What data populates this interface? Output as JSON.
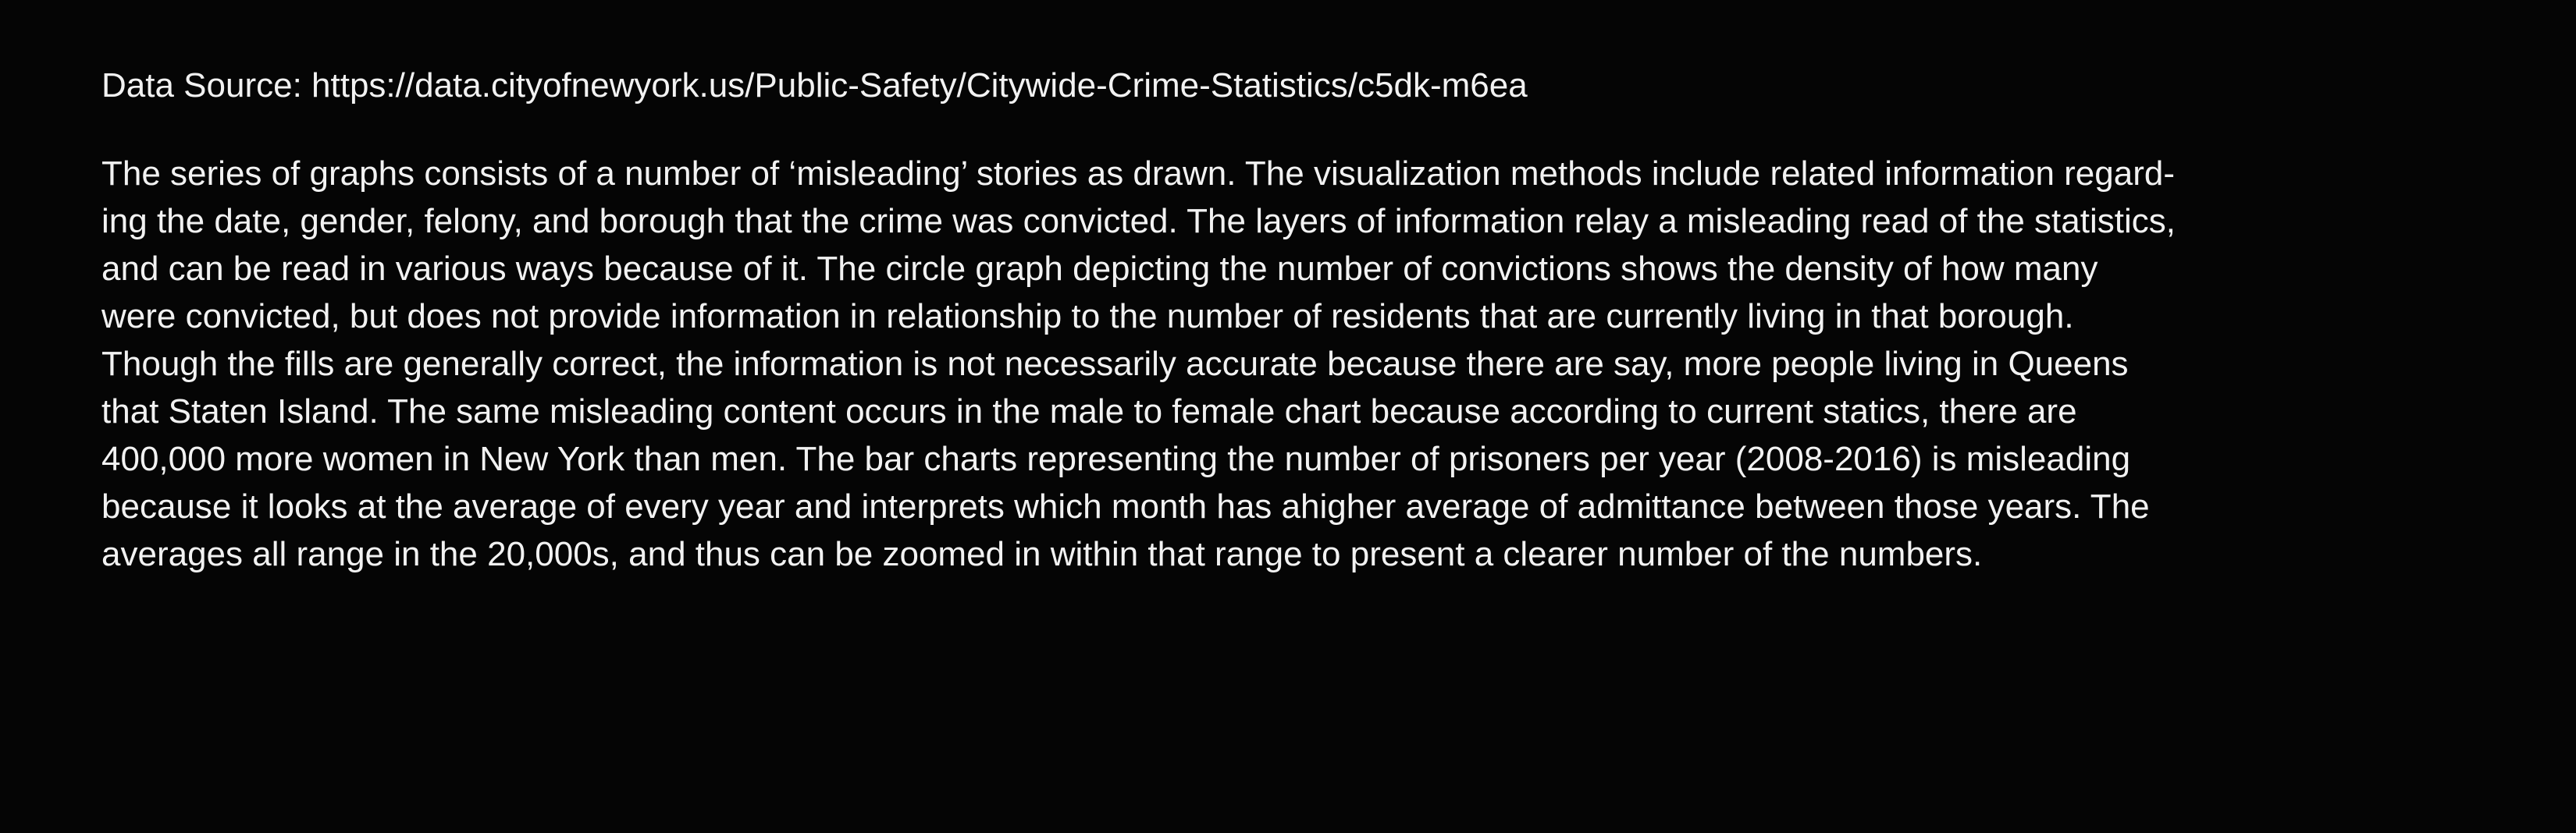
{
  "source": "Data Source: https://data.cityofnewyork.us/Public-Safety/Citywide-Crime-Statistics/c5dk-m6ea",
  "description_lines": [
    "The series of graphs consists of a number of ‘misleading’ stories as drawn. The visualization methods include related information regard-",
    "ing the date, gender, felony, and borough that the crime was convicted. The layers of information relay a misleading read of the statistics,",
    "and can be read in various ways because of it. The circle graph depicting the number of convictions shows the density of how many",
    "were convicted, but does not provide information in relationship to the number of residents that are currently living in that borough.",
    "Though the fills are generally correct, the information is not necessarily accurate because there are say, more people living in Queens",
    "that Staten Island. The same misleading content occurs in the male to female chart because according to current statics, there are",
    "400,000 more women in New York than men. The bar charts representing the number of prisoners per year (2008-2016) is misleading",
    "because it looks at the average of every year and interprets which month has ahigher average of admittance between those years. The",
    "averages all range in the 20,000s, and thus can be zoomed in within that range to present a clearer number of the numbers."
  ],
  "colors": {
    "background": "#050505",
    "text": "#f2f2f2"
  }
}
